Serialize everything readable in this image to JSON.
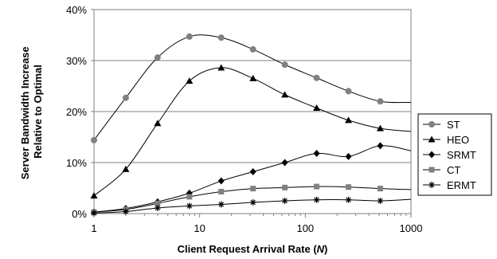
{
  "chart_data": {
    "type": "line",
    "x": [
      1,
      2,
      4,
      8,
      16,
      32,
      64,
      128,
      256,
      512
    ],
    "xscale": "log",
    "xlim": [
      1,
      1000
    ],
    "xticks": [
      "1",
      "10",
      "100",
      "1000"
    ],
    "ylim": [
      0,
      40
    ],
    "yticks": [
      "0%",
      "10%",
      "20%",
      "30%",
      "40%"
    ],
    "grid": "horizontal",
    "legend_position": "right",
    "xlabel_prefix": "Client Request Arrival Rate (",
    "xlabel_var": "N",
    "xlabel_suffix": ")",
    "ylabel_line1": "Server Bandwidth Increase",
    "ylabel_line2": "Relative to Optimal",
    "series": [
      {
        "name": "ST",
        "marker": "circle",
        "color": "#808080",
        "values": [
          14.4,
          22.7,
          30.6,
          34.7,
          34.5,
          32.2,
          29.2,
          26.6,
          24.0,
          22.0
        ],
        "end_value": 21.8
      },
      {
        "name": "HEO",
        "marker": "triangle",
        "color": "#000000",
        "values": [
          3.5,
          8.7,
          17.7,
          26.0,
          28.6,
          26.5,
          23.3,
          20.7,
          18.3,
          16.7
        ],
        "end_value": 16.1
      },
      {
        "name": "SRMT",
        "marker": "diamond",
        "color": "#000000",
        "values": [
          0.3,
          1.0,
          2.3,
          4.0,
          6.4,
          8.2,
          10.0,
          11.8,
          11.2,
          13.3
        ],
        "end_value": 12.3
      },
      {
        "name": "CT",
        "marker": "square",
        "color": "#808080",
        "values": [
          0.3,
          0.8,
          2.0,
          3.3,
          4.3,
          4.9,
          5.1,
          5.3,
          5.2,
          4.9
        ],
        "end_value": 4.7
      },
      {
        "name": "ERMT",
        "marker": "star",
        "color": "#000000",
        "values": [
          0.1,
          0.4,
          1.1,
          1.5,
          1.8,
          2.2,
          2.5,
          2.7,
          2.7,
          2.5
        ],
        "end_value": 2.8
      }
    ]
  }
}
